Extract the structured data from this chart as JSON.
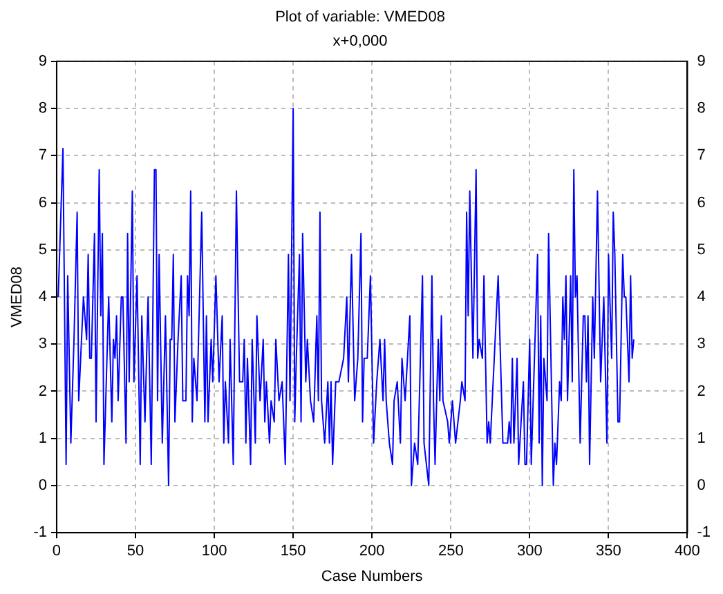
{
  "chart_data": {
    "type": "line",
    "title": "Plot of variable: VMED08",
    "subtitle": "x+0,000",
    "xlabel": "Case Numbers",
    "ylabel": "VMED08",
    "x": [
      1,
      4,
      6,
      7,
      9,
      11,
      13,
      14,
      17,
      19,
      20,
      21,
      22,
      24,
      25,
      27,
      28,
      29,
      30,
      33,
      35,
      36,
      37,
      38,
      39,
      41,
      42,
      44,
      45,
      46,
      48,
      49,
      51,
      53,
      54,
      56,
      58,
      60,
      62,
      63,
      64,
      65,
      67,
      69,
      71,
      72,
      73,
      74,
      75,
      77,
      79,
      80,
      82,
      83,
      84,
      85,
      86,
      87,
      89,
      92,
      94,
      95,
      96,
      98,
      99,
      101,
      103,
      105,
      106,
      107,
      109,
      110,
      112,
      114,
      116,
      118,
      119,
      120,
      121,
      123,
      124,
      126,
      127,
      129,
      131,
      132,
      133,
      135,
      136,
      138,
      139,
      141,
      143,
      145,
      147,
      148,
      150,
      151,
      152,
      154,
      155,
      156,
      158,
      159,
      161,
      163,
      165,
      166,
      167,
      168,
      170,
      172,
      173,
      174,
      175,
      177,
      179,
      182,
      184,
      185,
      187,
      189,
      191,
      193,
      194,
      195,
      197,
      199,
      201,
      203,
      205,
      207,
      208,
      209,
      211,
      213,
      214,
      216,
      218,
      219,
      221,
      224,
      225,
      227,
      229,
      230,
      232,
      233,
      236,
      238,
      239,
      240,
      241,
      242,
      243,
      244,
      245,
      248,
      249,
      251,
      253,
      256,
      257,
      259,
      260,
      261,
      262,
      264,
      266,
      267,
      268,
      270,
      271,
      273,
      274,
      275,
      280,
      283,
      286,
      287,
      288,
      289,
      290,
      292,
      293,
      296,
      297,
      298,
      300,
      301,
      305,
      306,
      307,
      308,
      309,
      311,
      312,
      315,
      316,
      317,
      319,
      320,
      321,
      322,
      323,
      324,
      326,
      327,
      328,
      329,
      330,
      332,
      334,
      335,
      336,
      337,
      338,
      340,
      341,
      343,
      345,
      347,
      349,
      350,
      352,
      353,
      354,
      356,
      357,
      359,
      360,
      361,
      363,
      364,
      365,
      366
    ],
    "series": [
      {
        "color": "#0000ff",
        "values": [
          4.0,
          7.15,
          0.45,
          4.45,
          0.9,
          3.1,
          5.8,
          1.8,
          4.0,
          3.1,
          4.9,
          2.7,
          2.7,
          5.35,
          1.35,
          6.7,
          3.6,
          5.35,
          0.45,
          4.0,
          1.35,
          3.1,
          2.7,
          3.6,
          1.8,
          4.0,
          4.0,
          0.9,
          5.35,
          2.2,
          6.25,
          2.2,
          4.45,
          0.45,
          3.6,
          1.35,
          4.0,
          0.45,
          6.7,
          6.7,
          1.8,
          4.9,
          0.9,
          3.6,
          0.0,
          3.1,
          3.1,
          4.9,
          1.35,
          3.1,
          4.45,
          1.8,
          1.8,
          4.45,
          3.6,
          6.25,
          1.35,
          2.7,
          1.8,
          5.8,
          1.35,
          3.6,
          1.35,
          3.1,
          2.2,
          4.45,
          2.2,
          3.6,
          0.9,
          2.2,
          0.9,
          3.1,
          0.45,
          6.25,
          2.2,
          2.2,
          3.1,
          0.9,
          2.7,
          0.45,
          3.1,
          0.9,
          3.6,
          1.8,
          3.1,
          1.35,
          2.2,
          0.9,
          1.8,
          1.35,
          3.1,
          1.8,
          2.2,
          0.45,
          4.9,
          1.8,
          8.0,
          1.35,
          2.7,
          4.9,
          1.35,
          5.35,
          2.2,
          3.1,
          1.8,
          1.35,
          3.6,
          1.8,
          5.8,
          1.8,
          0.9,
          2.2,
          0.9,
          2.2,
          0.45,
          2.2,
          2.2,
          2.7,
          4.0,
          2.2,
          4.9,
          1.8,
          2.7,
          5.35,
          1.35,
          2.7,
          2.7,
          4.45,
          0.9,
          2.2,
          3.1,
          1.8,
          3.1,
          1.8,
          0.9,
          0.45,
          1.8,
          2.2,
          0.9,
          2.7,
          1.8,
          3.6,
          0.0,
          0.9,
          0.45,
          1.8,
          4.45,
          0.9,
          0.0,
          4.45,
          1.8,
          0.45,
          1.8,
          3.1,
          1.8,
          3.6,
          1.8,
          1.35,
          0.9,
          1.8,
          0.9,
          1.8,
          2.2,
          1.8,
          5.8,
          3.6,
          6.25,
          2.7,
          6.7,
          2.7,
          3.1,
          2.7,
          4.45,
          0.9,
          1.35,
          0.9,
          4.45,
          0.9,
          0.9,
          1.35,
          0.9,
          2.7,
          0.9,
          2.7,
          0.45,
          2.2,
          0.45,
          0.45,
          3.1,
          0.45,
          4.9,
          0.9,
          3.6,
          0.0,
          2.7,
          1.8,
          5.35,
          0.0,
          0.9,
          0.45,
          2.2,
          1.8,
          4.0,
          3.1,
          4.45,
          1.8,
          4.45,
          2.2,
          6.7,
          4.0,
          4.45,
          0.9,
          3.6,
          3.6,
          2.2,
          3.6,
          0.45,
          4.0,
          2.7,
          6.25,
          2.2,
          4.0,
          0.9,
          4.9,
          2.7,
          5.8,
          4.9,
          1.35,
          1.35,
          4.9,
          4.0,
          4.0,
          2.2,
          4.45,
          2.7,
          3.1
        ]
      }
    ],
    "xlim": [
      0,
      400
    ],
    "xticks": [
      0,
      50,
      100,
      150,
      200,
      250,
      300,
      350,
      400
    ],
    "ylim": [
      -1,
      9
    ],
    "yticks": [
      -1,
      0,
      1,
      2,
      3,
      4,
      5,
      6,
      7,
      8,
      9
    ],
    "y2lim": [
      -1,
      9
    ],
    "y2ticks": [
      -1,
      0,
      1,
      2,
      3,
      4,
      5,
      6,
      7,
      8,
      9
    ],
    "grid": true,
    "marker": "none",
    "line_style": "solid",
    "legend": false
  }
}
